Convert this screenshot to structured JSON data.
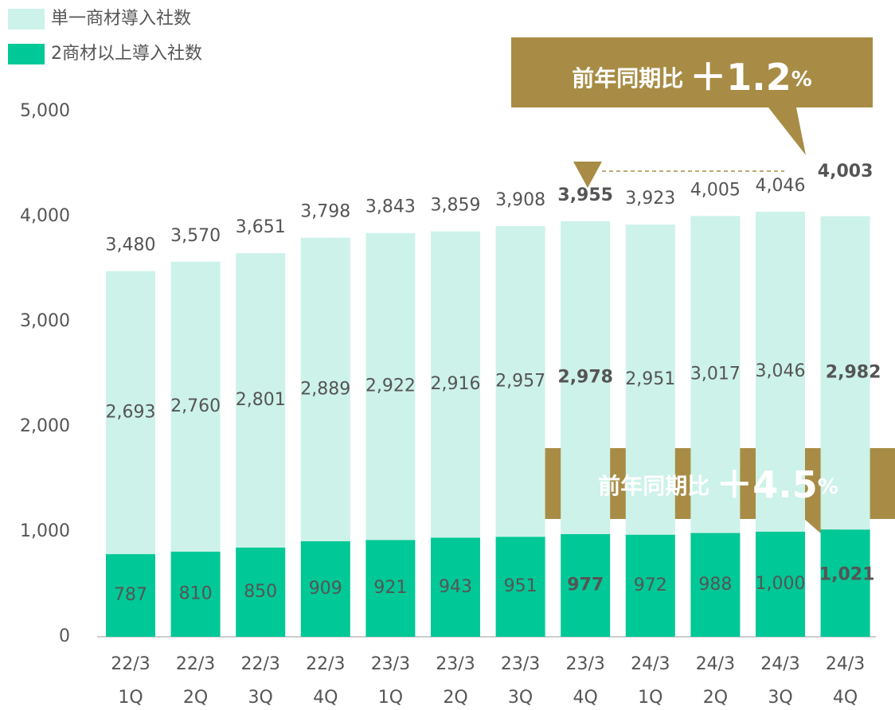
{
  "chart_data": {
    "type": "stacked_bar",
    "categories": [
      [
        "22/3",
        "1Q"
      ],
      [
        "22/3",
        "2Q"
      ],
      [
        "22/3",
        "3Q"
      ],
      [
        "22/3",
        "4Q"
      ],
      [
        "23/3",
        "1Q"
      ],
      [
        "23/3",
        "2Q"
      ],
      [
        "23/3",
        "3Q"
      ],
      [
        "23/3",
        "4Q"
      ],
      [
        "24/3",
        "1Q"
      ],
      [
        "24/3",
        "2Q"
      ],
      [
        "24/3",
        "3Q"
      ],
      [
        "24/3",
        "4Q"
      ]
    ],
    "series": [
      {
        "name": "2商材以上導入社数",
        "color": "#00c896",
        "values": [
          787,
          810,
          850,
          909,
          921,
          943,
          951,
          977,
          972,
          988,
          1000,
          1021
        ],
        "value_labels": [
          "787",
          "810",
          "850",
          "909",
          "921",
          "943",
          "951",
          "977",
          "972",
          "988",
          "1,000",
          "1,021"
        ]
      },
      {
        "name": "単一商材導入社数",
        "color": "#cdf2e9",
        "values": [
          2693,
          2760,
          2801,
          2889,
          2922,
          2916,
          2957,
          2978,
          2951,
          3017,
          3046,
          2982
        ],
        "value_labels": [
          "2,693",
          "2,760",
          "2,801",
          "2,889",
          "2,922",
          "2,916",
          "2,957",
          "2,978",
          "2,951",
          "3,017",
          "3,046",
          "2,982"
        ]
      }
    ],
    "totals": [
      3480,
      3570,
      3651,
      3798,
      3843,
      3859,
      3908,
      3955,
      3923,
      4005,
      4046,
      4003
    ],
    "total_labels": [
      "3,480",
      "3,570",
      "3,651",
      "3,798",
      "3,843",
      "3,859",
      "3,908",
      "3,955",
      "3,923",
      "4,005",
      "4,046",
      "4,003"
    ],
    "ylim": [
      0,
      5000
    ],
    "yticks": [
      0,
      {
        "value": 1000,
        "label": "1,000"
      },
      {
        "value": 2000,
        "label": "2,000"
      },
      {
        "value": 3000,
        "label": "3,000"
      },
      {
        "value": 4000,
        "label": "4,000"
      },
      {
        "value": 5000,
        "label": "5,000"
      }
    ],
    "annotations": [
      {
        "prefix": "前年同期比",
        "value_label": "＋1.2",
        "unit": "%"
      },
      {
        "prefix": "前年同期比",
        "value_label": "＋4.5",
        "unit": "%"
      }
    ]
  }
}
